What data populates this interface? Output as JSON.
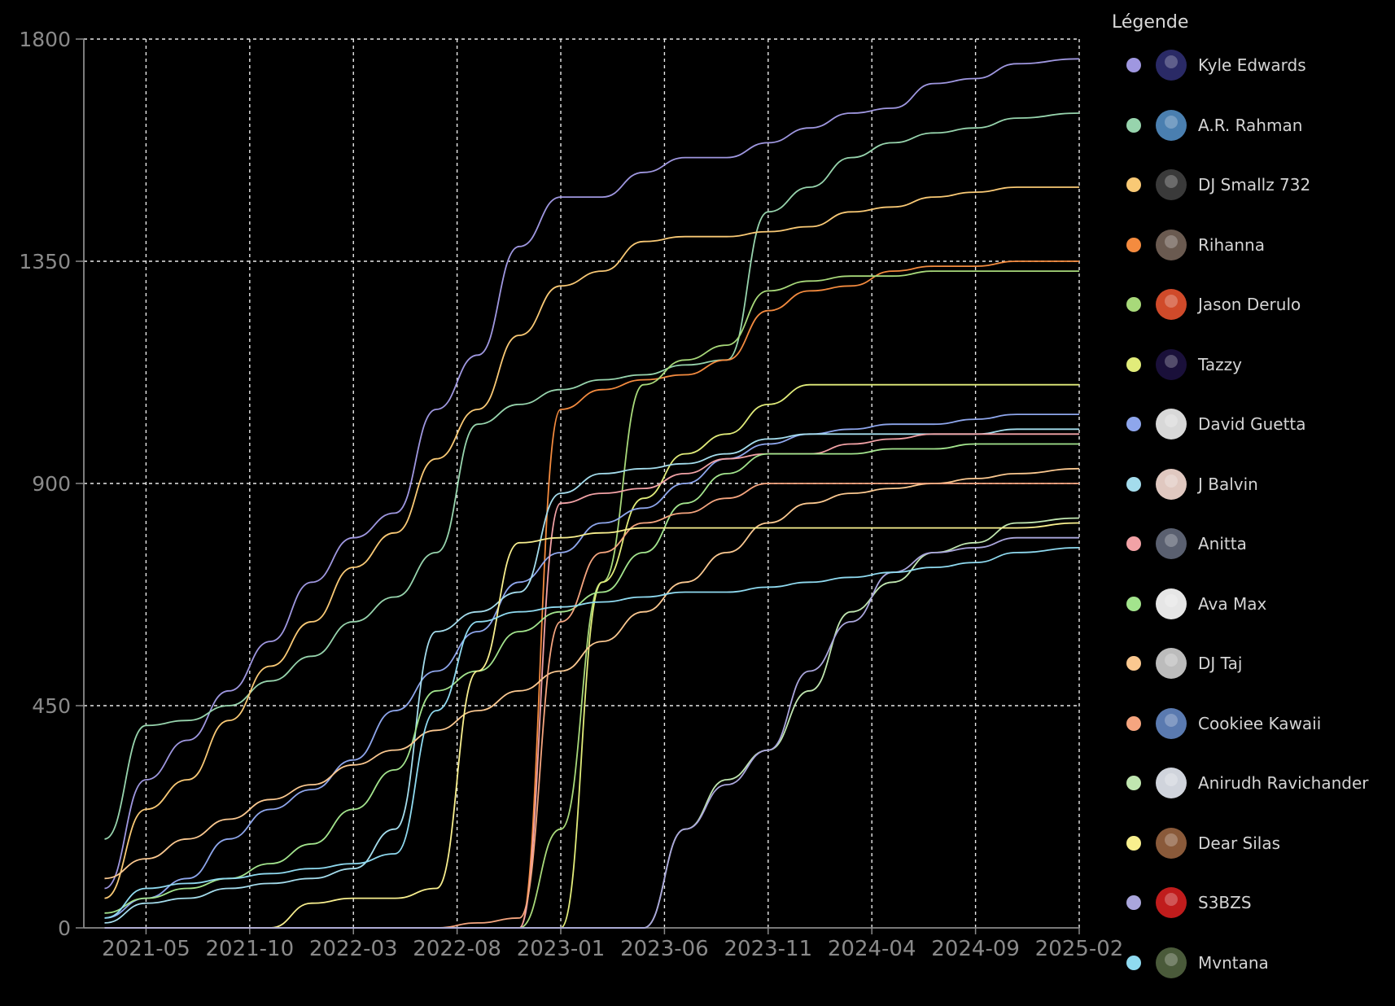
{
  "chart_data": {
    "type": "line",
    "ylim": [
      0,
      1800
    ],
    "yticks": [
      0,
      450,
      900,
      1350,
      1800
    ],
    "xticks": [
      "2021-05",
      "2021-10",
      "2022-03",
      "2022-08",
      "2023-01",
      "2023-06",
      "2023-11",
      "2024-04",
      "2024-09",
      "2025-02"
    ],
    "x": [
      "2021-03",
      "2021-05",
      "2021-07",
      "2021-09",
      "2021-11",
      "2022-01",
      "2022-03",
      "2022-05",
      "2022-07",
      "2022-09",
      "2022-11",
      "2023-01",
      "2023-03",
      "2023-05",
      "2023-07",
      "2023-09",
      "2023-11",
      "2024-01",
      "2024-03",
      "2024-05",
      "2024-07",
      "2024-09",
      "2024-11",
      "2025-02"
    ],
    "grid": true,
    "legend_position": "right",
    "series": [
      {
        "name": "Kyle Edwards",
        "color": "#9f97e0",
        "values": [
          80,
          300,
          380,
          480,
          580,
          700,
          790,
          840,
          1050,
          1160,
          1380,
          1480,
          1480,
          1530,
          1560,
          1560,
          1590,
          1620,
          1650,
          1660,
          1710,
          1720,
          1750,
          1760
        ]
      },
      {
        "name": "A.R. Rahman",
        "color": "#97d4ad",
        "values": [
          180,
          410,
          420,
          450,
          500,
          550,
          620,
          670,
          760,
          1020,
          1060,
          1090,
          1110,
          1120,
          1140,
          1150,
          1450,
          1500,
          1560,
          1590,
          1610,
          1620,
          1640,
          1650
        ]
      },
      {
        "name": "DJ Smallz 732",
        "color": "#f9c975",
        "values": [
          60,
          240,
          300,
          420,
          530,
          620,
          730,
          800,
          950,
          1050,
          1200,
          1300,
          1330,
          1390,
          1400,
          1400,
          1410,
          1420,
          1450,
          1460,
          1480,
          1490,
          1500,
          1500
        ]
      },
      {
        "name": "Rihanna",
        "color": "#f48b3f",
        "values": [
          0,
          0,
          0,
          0,
          0,
          0,
          0,
          0,
          0,
          0,
          0,
          1050,
          1090,
          1110,
          1120,
          1150,
          1250,
          1290,
          1300,
          1330,
          1340,
          1340,
          1350,
          1350
        ]
      },
      {
        "name": "Jason Derulo",
        "color": "#a8d97a",
        "values": [
          0,
          0,
          0,
          0,
          0,
          0,
          0,
          0,
          0,
          0,
          0,
          200,
          700,
          1100,
          1150,
          1180,
          1290,
          1310,
          1320,
          1320,
          1330,
          1330,
          1330,
          1330
        ]
      },
      {
        "name": "Tazzy",
        "color": "#e1ec7a",
        "values": [
          0,
          0,
          0,
          0,
          0,
          0,
          0,
          0,
          0,
          0,
          0,
          0,
          700,
          870,
          960,
          1000,
          1060,
          1100,
          1100,
          1100,
          1100,
          1100,
          1100,
          1100
        ]
      },
      {
        "name": "David Guetta",
        "color": "#8ea6ec",
        "values": [
          20,
          60,
          100,
          180,
          240,
          280,
          340,
          440,
          520,
          600,
          700,
          760,
          820,
          850,
          900,
          950,
          980,
          1000,
          1010,
          1020,
          1020,
          1030,
          1040,
          1040
        ]
      },
      {
        "name": "J Balvin",
        "color": "#a4dcec",
        "values": [
          10,
          50,
          60,
          80,
          90,
          100,
          120,
          200,
          600,
          640,
          680,
          880,
          920,
          930,
          940,
          960,
          990,
          1000,
          1000,
          1000,
          1000,
          1000,
          1010,
          1010
        ]
      },
      {
        "name": "Anitta",
        "color": "#f2a2a6",
        "values": [
          0,
          0,
          0,
          0,
          0,
          0,
          0,
          0,
          0,
          0,
          0,
          860,
          880,
          890,
          920,
          950,
          960,
          960,
          980,
          990,
          1000,
          1000,
          1000,
          1000
        ]
      },
      {
        "name": "Ava Max",
        "color": "#a3e48d",
        "values": [
          30,
          60,
          80,
          100,
          130,
          170,
          240,
          320,
          480,
          520,
          600,
          640,
          680,
          760,
          860,
          920,
          960,
          960,
          960,
          970,
          970,
          980,
          980,
          980
        ]
      },
      {
        "name": "DJ Taj",
        "color": "#fbc890",
        "values": [
          100,
          140,
          180,
          220,
          260,
          290,
          330,
          360,
          400,
          440,
          480,
          520,
          580,
          640,
          700,
          760,
          820,
          860,
          880,
          890,
          900,
          910,
          920,
          930
        ]
      },
      {
        "name": "Cookiee Kawaii",
        "color": "#f5a57f",
        "values": [
          0,
          0,
          0,
          0,
          0,
          0,
          0,
          0,
          0,
          10,
          20,
          620,
          760,
          820,
          840,
          870,
          900,
          900,
          900,
          900,
          900,
          900,
          900,
          900
        ]
      },
      {
        "name": "Anirudh Ravichander",
        "color": "#c0e6b0",
        "values": [
          0,
          0,
          0,
          0,
          0,
          0,
          0,
          0,
          0,
          0,
          0,
          0,
          0,
          0,
          200,
          300,
          360,
          480,
          640,
          700,
          760,
          780,
          820,
          830
        ]
      },
      {
        "name": "Dear Silas",
        "color": "#f8ef8e",
        "values": [
          0,
          0,
          0,
          0,
          0,
          50,
          60,
          60,
          80,
          520,
          780,
          790,
          800,
          810,
          810,
          810,
          810,
          810,
          810,
          810,
          810,
          810,
          810,
          820
        ]
      },
      {
        "name": "S3BZS",
        "color": "#aaa6dc",
        "values": [
          0,
          0,
          0,
          0,
          0,
          0,
          0,
          0,
          0,
          0,
          0,
          0,
          0,
          0,
          200,
          290,
          360,
          520,
          620,
          720,
          760,
          770,
          790,
          790
        ]
      },
      {
        "name": "Mvntana",
        "color": "#8fdaf0",
        "values": [
          20,
          80,
          90,
          100,
          110,
          120,
          130,
          150,
          440,
          620,
          640,
          650,
          660,
          670,
          680,
          680,
          690,
          700,
          710,
          720,
          730,
          740,
          760,
          770
        ]
      }
    ]
  },
  "legend": {
    "title": "Légende",
    "items": [
      {
        "label": "Kyle Edwards",
        "color": "#9f97e0",
        "avatar": "#2a2a66"
      },
      {
        "label": "A.R. Rahman",
        "color": "#97d4ad",
        "avatar": "#4a7fb0"
      },
      {
        "label": "DJ Smallz 732",
        "color": "#f9c975",
        "avatar": "#3a3a3a"
      },
      {
        "label": "Rihanna",
        "color": "#f48b3f",
        "avatar": "#6a5a50"
      },
      {
        "label": "Jason Derulo",
        "color": "#a8d97a",
        "avatar": "#d04a2a"
      },
      {
        "label": "Tazzy",
        "color": "#e1ec7a",
        "avatar": "#1a103a"
      },
      {
        "label": "David Guetta",
        "color": "#8ea6ec",
        "avatar": "#d8d8d8"
      },
      {
        "label": "J Balvin",
        "color": "#a4dcec",
        "avatar": "#e0c8c0"
      },
      {
        "label": "Anitta",
        "color": "#f2a2a6",
        "avatar": "#5a6070"
      },
      {
        "label": "Ava Max",
        "color": "#a3e48d",
        "avatar": "#e6e6e6"
      },
      {
        "label": "DJ Taj",
        "color": "#fbc890",
        "avatar": "#bcbcbc"
      },
      {
        "label": "Cookiee Kawaii",
        "color": "#f5a57f",
        "avatar": "#5a7ab0"
      },
      {
        "label": "Anirudh Ravichander",
        "color": "#c0e6b0",
        "avatar": "#d0d4dc"
      },
      {
        "label": "Dear Silas",
        "color": "#f8ef8e",
        "avatar": "#8a5a3a"
      },
      {
        "label": "S3BZS",
        "color": "#aaa6dc",
        "avatar": "#c01c1c"
      },
      {
        "label": "Mvntana",
        "color": "#8fdaf0",
        "avatar": "#4a5a3a"
      }
    ]
  }
}
